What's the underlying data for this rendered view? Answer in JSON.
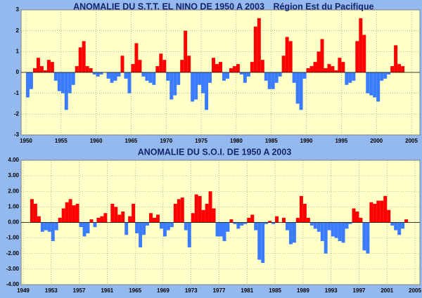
{
  "chart_data": [
    {
      "type": "bar",
      "title": "ANOMALIE DU S.T.T. EL NINO DE 1950 A 2003",
      "subtitle": "Région Est du Pacifique",
      "x": [
        1950.25,
        1950.75,
        1951.25,
        1951.75,
        1952.25,
        1952.75,
        1953.25,
        1953.75,
        1954.25,
        1954.75,
        1955.25,
        1955.75,
        1956.25,
        1956.75,
        1957.25,
        1957.75,
        1958.25,
        1958.75,
        1959.25,
        1959.75,
        1960.25,
        1960.75,
        1961.25,
        1961.75,
        1962.25,
        1962.75,
        1963.25,
        1963.75,
        1964.25,
        1964.75,
        1965.25,
        1965.75,
        1966.25,
        1966.75,
        1967.25,
        1967.75,
        1968.25,
        1968.75,
        1969.25,
        1969.75,
        1970.25,
        1970.75,
        1971.25,
        1971.75,
        1972.25,
        1972.75,
        1973.25,
        1973.75,
        1974.25,
        1974.75,
        1975.25,
        1975.75,
        1976.25,
        1976.75,
        1977.25,
        1977.75,
        1978.25,
        1978.75,
        1979.25,
        1979.75,
        1980.25,
        1980.75,
        1981.25,
        1981.75,
        1982.25,
        1982.75,
        1983.25,
        1983.75,
        1984.25,
        1984.75,
        1985.25,
        1985.75,
        1986.25,
        1986.75,
        1987.25,
        1987.75,
        1988.25,
        1988.75,
        1989.25,
        1989.75,
        1990.25,
        1990.75,
        1991.25,
        1991.75,
        1992.25,
        1992.75,
        1993.25,
        1993.75,
        1994.25,
        1994.75,
        1995.25,
        1995.75,
        1996.25,
        1996.75,
        1997.25,
        1997.75,
        1998.25,
        1998.75,
        1999.25,
        1999.75,
        2000.25,
        2000.75,
        2001.25,
        2001.75,
        2002.25,
        2002.75,
        2003.25,
        2003.75
      ],
      "values": [
        -1.2,
        -0.8,
        0.2,
        0.7,
        0.3,
        0.1,
        0.6,
        0.5,
        -0.4,
        -0.9,
        -1.0,
        -1.8,
        -1.0,
        -0.6,
        0.3,
        1.2,
        1.5,
        0.3,
        0.2,
        -0.1,
        -0.2,
        -0.1,
        0.0,
        -0.3,
        -0.5,
        -0.4,
        -0.2,
        0.8,
        -0.3,
        -1.0,
        0.4,
        1.4,
        0.6,
        -0.2,
        -0.4,
        -0.5,
        -0.6,
        0.3,
        0.9,
        0.6,
        -0.4,
        -1.3,
        -1.1,
        -0.6,
        0.6,
        2.0,
        0.8,
        -1.4,
        -1.3,
        -0.6,
        -1.0,
        -1.8,
        -0.5,
        0.7,
        0.4,
        0.5,
        -0.4,
        -0.3,
        0.2,
        0.3,
        0.4,
        -0.1,
        -0.5,
        -0.2,
        0.5,
        2.2,
        2.6,
        0.6,
        -0.4,
        -0.8,
        -0.8,
        -0.5,
        -0.2,
        0.8,
        1.7,
        1.5,
        -0.5,
        -1.5,
        -1.8,
        -0.3,
        0.2,
        0.3,
        0.5,
        1.0,
        1.6,
        0.2,
        0.4,
        0.3,
        0.1,
        0.7,
        0.5,
        -0.6,
        -0.5,
        -0.4,
        1.5,
        2.6,
        1.8,
        -1.0,
        -1.1,
        -1.2,
        -1.4,
        -0.4,
        -0.3,
        -0.1,
        0.3,
        1.3,
        0.4,
        0.3
      ],
      "positive_color": "#ff0000",
      "negative_color": "#3b7cff",
      "xlim": [
        1949.3,
        2006.2
      ],
      "xticks": [
        1950,
        1955,
        1960,
        1965,
        1970,
        1975,
        1980,
        1985,
        1990,
        1995,
        2000,
        2005
      ],
      "ylim": [
        -3,
        3
      ],
      "yticks": [
        -3,
        -2,
        -1,
        0,
        1,
        2,
        3
      ],
      "grid": true
    },
    {
      "type": "bar",
      "title": "ANOMALIE DU S.O.I. DE 1950 A 2003",
      "x": [
        1950.25,
        1950.75,
        1951.25,
        1951.75,
        1952.25,
        1952.75,
        1953.25,
        1953.75,
        1954.25,
        1954.75,
        1955.25,
        1955.75,
        1956.25,
        1956.75,
        1957.25,
        1957.75,
        1958.25,
        1958.75,
        1959.25,
        1959.75,
        1960.25,
        1960.75,
        1961.25,
        1961.75,
        1962.25,
        1962.75,
        1963.25,
        1963.75,
        1964.25,
        1964.75,
        1965.25,
        1965.75,
        1966.25,
        1966.75,
        1967.25,
        1967.75,
        1968.25,
        1968.75,
        1969.25,
        1969.75,
        1970.25,
        1970.75,
        1971.25,
        1971.75,
        1972.25,
        1972.75,
        1973.25,
        1973.75,
        1974.25,
        1974.75,
        1975.25,
        1975.75,
        1976.25,
        1976.75,
        1977.25,
        1977.75,
        1978.25,
        1978.75,
        1979.25,
        1979.75,
        1980.25,
        1980.75,
        1981.25,
        1981.75,
        1982.25,
        1982.75,
        1983.25,
        1983.75,
        1984.25,
        1984.75,
        1985.25,
        1985.75,
        1986.25,
        1986.75,
        1987.25,
        1987.75,
        1988.25,
        1988.75,
        1989.25,
        1989.75,
        1990.25,
        1990.75,
        1991.25,
        1991.75,
        1992.25,
        1992.75,
        1993.25,
        1993.75,
        1994.25,
        1994.75,
        1995.25,
        1995.75,
        1996.25,
        1996.75,
        1997.25,
        1997.75,
        1998.25,
        1998.75,
        1999.25,
        1999.75,
        2000.25,
        2000.75,
        2001.25,
        2001.75,
        2002.25,
        2002.75,
        2003.25,
        2003.75
      ],
      "values": [
        1.5,
        1.2,
        0.4,
        -0.6,
        -0.5,
        -0.6,
        -1.2,
        -0.5,
        0.3,
        0.9,
        1.3,
        1.5,
        1.1,
        1.2,
        -0.3,
        -0.9,
        -0.7,
        0.2,
        -0.3,
        0.3,
        0.4,
        0.6,
        0.0,
        1.2,
        1.0,
        0.5,
        0.7,
        -0.8,
        0.4,
        1.2,
        -0.7,
        -1.6,
        -0.8,
        -0.2,
        0.6,
        0.3,
        0.5,
        -0.4,
        -0.9,
        -0.5,
        -0.3,
        1.2,
        1.5,
        1.6,
        -0.5,
        -1.6,
        0.6,
        1.8,
        1.7,
        0.8,
        1.2,
        2.0,
        0.9,
        -0.9,
        -0.9,
        -1.2,
        -0.6,
        0.2,
        -0.1,
        -0.4,
        -0.2,
        -0.1,
        0.3,
        0.5,
        -0.5,
        -2.4,
        -2.6,
        -0.1,
        0.1,
        -0.1,
        0.4,
        0.0,
        0.3,
        -0.5,
        -1.4,
        -1.3,
        0.3,
        1.7,
        1.2,
        0.3,
        -0.2,
        -0.4,
        -0.6,
        -1.2,
        -2.0,
        -0.5,
        -0.9,
        -1.0,
        -1.2,
        -1.3,
        -0.4,
        -0.1,
        0.9,
        0.7,
        0.3,
        -1.8,
        -2.0,
        1.3,
        1.2,
        1.4,
        1.4,
        1.7,
        0.8,
        -0.2,
        -0.5,
        -0.8,
        -0.4,
        0.2
      ],
      "positive_color": "#ff0000",
      "negative_color": "#3b7cff",
      "xlim": [
        1948.7,
        2005.7
      ],
      "xticks": [
        1949,
        1953,
        1957,
        1961,
        1965,
        1969,
        1973,
        1977,
        1981,
        1985,
        1989,
        1993,
        1997,
        2001,
        2005
      ],
      "ylim": [
        -4,
        4
      ],
      "yticks": [
        {
          "value": -4,
          "label": "-4.00"
        },
        {
          "value": -3,
          "label": "-3.00"
        },
        {
          "value": -2,
          "label": "-2.00"
        },
        {
          "value": -1,
          "label": "-1.00"
        },
        {
          "value": 0,
          "label": "0.00"
        },
        {
          "value": 1,
          "label": "1.00"
        },
        {
          "value": 2,
          "label": "2.00"
        },
        {
          "value": 3,
          "label": "3.00"
        },
        {
          "value": 4,
          "label": "4.00"
        }
      ],
      "grid": true
    }
  ]
}
